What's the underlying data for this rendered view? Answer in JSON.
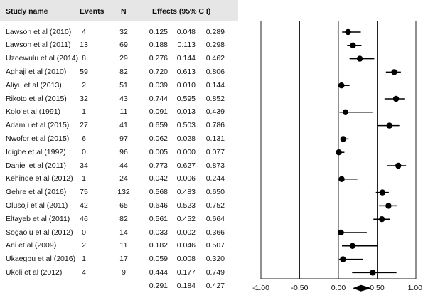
{
  "header": {
    "study": "Study name",
    "events": "Events",
    "n": "N",
    "effects": "Effects (95% C I)"
  },
  "chart_data": {
    "type": "forest",
    "columns": [
      "Study name",
      "Events",
      "N",
      "Effects (95% C I)"
    ],
    "studies": [
      {
        "name": "Lawson et al (2010)",
        "events": "4",
        "n": "32",
        "effect": "0.125",
        "lower": "0.048",
        "upper": "0.289"
      },
      {
        "name": "Lawson et al (2011)",
        "events": "13",
        "n": "69",
        "effect": "0.188",
        "lower": "0.113",
        "upper": "0.298"
      },
      {
        "name": "Uzoewulu et al (2014)",
        "events": "8",
        "n": "29",
        "effect": "0.276",
        "lower": "0.144",
        "upper": "0.462"
      },
      {
        "name": "Aghaji et al (2010)",
        "events": "59",
        "n": "82",
        "effect": "0.720",
        "lower": "0.613",
        "upper": "0.806"
      },
      {
        "name": "Aliyu et al (2013)",
        "events": "2",
        "n": "51",
        "effect": "0.039",
        "lower": "0.010",
        "upper": "0.144"
      },
      {
        "name": "Rikoto et al (2015)",
        "events": "32",
        "n": "43",
        "effect": "0.744",
        "lower": "0.595",
        "upper": "0.852"
      },
      {
        "name": "Kolo et al (1991)",
        "events": "1",
        "n": "11",
        "effect": "0.091",
        "lower": "0.013",
        "upper": "0.439"
      },
      {
        "name": "Adamu et al (2015)",
        "events": "27",
        "n": "41",
        "effect": "0.659",
        "lower": "0.503",
        "upper": "0.786"
      },
      {
        "name": "Nwofor et al (2015)",
        "events": "6",
        "n": "97",
        "effect": "0.062",
        "lower": "0.028",
        "upper": "0.131"
      },
      {
        "name": "Idigbe et al (1992)",
        "events": "0",
        "n": "96",
        "effect": "0.005",
        "lower": "0.000",
        "upper": "0.077"
      },
      {
        "name": "Daniel et al (2011)",
        "events": "34",
        "n": "44",
        "effect": "0.773",
        "lower": "0.627",
        "upper": "0.873"
      },
      {
        "name": "Kehinde et al (2012)",
        "events": "1",
        "n": "24",
        "effect": "0.042",
        "lower": "0.006",
        "upper": "0.244"
      },
      {
        "name": "Gehre et al (2016)",
        "events": "75",
        "n": "132",
        "effect": "0.568",
        "lower": "0.483",
        "upper": "0.650"
      },
      {
        "name": "Olusoji et al (2011)",
        "events": "42",
        "n": "65",
        "effect": "0.646",
        "lower": "0.523",
        "upper": "0.752"
      },
      {
        "name": "Eltayeb et al (2011)",
        "events": "46",
        "n": "82",
        "effect": "0.561",
        "lower": "0.452",
        "upper": "0.664"
      },
      {
        "name": "Sogaolu et al (2012)",
        "events": "0",
        "n": "14",
        "effect": "0.033",
        "lower": "0.002",
        "upper": "0.366"
      },
      {
        "name": "Ani et al (2009)",
        "events": "2",
        "n": "11",
        "effect": "0.182",
        "lower": "0.046",
        "upper": "0.507"
      },
      {
        "name": "Ukaegbu et al (2016)",
        "events": "1",
        "n": "17",
        "effect": "0.059",
        "lower": "0.008",
        "upper": "0.320"
      },
      {
        "name": "Ukoli et al (2012)",
        "events": "4",
        "n": "9",
        "effect": "0.444",
        "lower": "0.177",
        "upper": "0.749"
      }
    ],
    "pooled": {
      "effect": "0.291",
      "lower": "0.184",
      "upper": "0.427"
    },
    "x_ticks": [
      "-1.00",
      "-0.50",
      "0.00",
      "0.50",
      "1.00"
    ],
    "xlim": [
      -1,
      1
    ],
    "xlabel": "",
    "title": ""
  }
}
